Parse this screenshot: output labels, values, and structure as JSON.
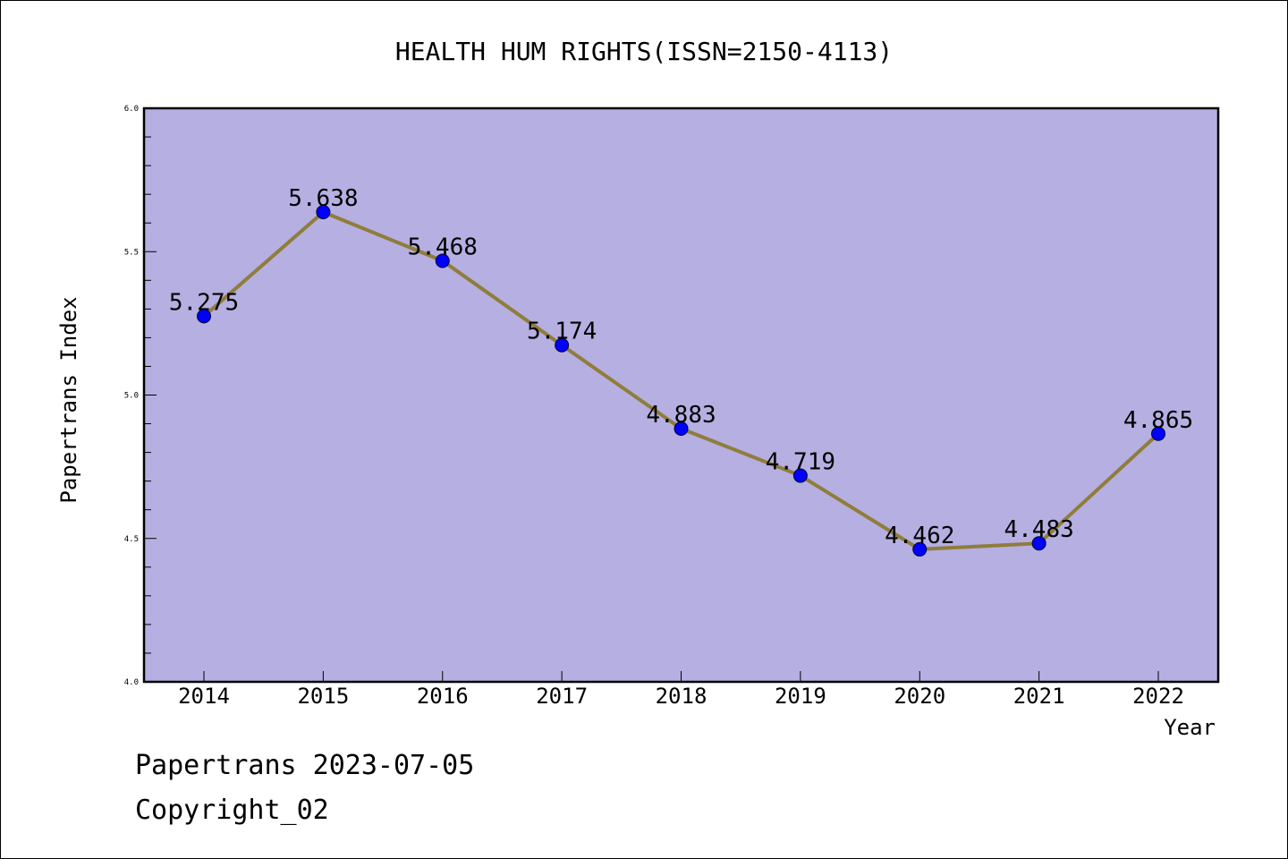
{
  "chart_data": {
    "type": "line",
    "title": "HEALTH HUM RIGHTS(ISSN=2150-4113)",
    "xlabel": "Year",
    "ylabel": "Papertrans Index",
    "x": [
      "2014",
      "2015",
      "2016",
      "2017",
      "2018",
      "2019",
      "2020",
      "2021",
      "2022"
    ],
    "series": [
      {
        "name": "Papertrans Index",
        "values": [
          5.275,
          5.638,
          5.468,
          5.174,
          4.883,
          4.719,
          4.462,
          4.483,
          4.865
        ],
        "labels": [
          "5.275",
          "5.638",
          "5.468",
          "5.174",
          "4.883",
          "4.719",
          "4.462",
          "4.483",
          "4.865"
        ]
      }
    ],
    "ylim": [
      4.0,
      6.0
    ],
    "yticks": [
      "4.0",
      "4.5",
      "5.0",
      "5.5",
      "6.0"
    ],
    "grid": false,
    "colors": {
      "plot_background": "#b5afe2",
      "line": "#8f7d3a",
      "marker": "#0000ff"
    }
  },
  "footer": {
    "line1": "Papertrans 2023-07-05",
    "line2": "Copyright_02"
  }
}
